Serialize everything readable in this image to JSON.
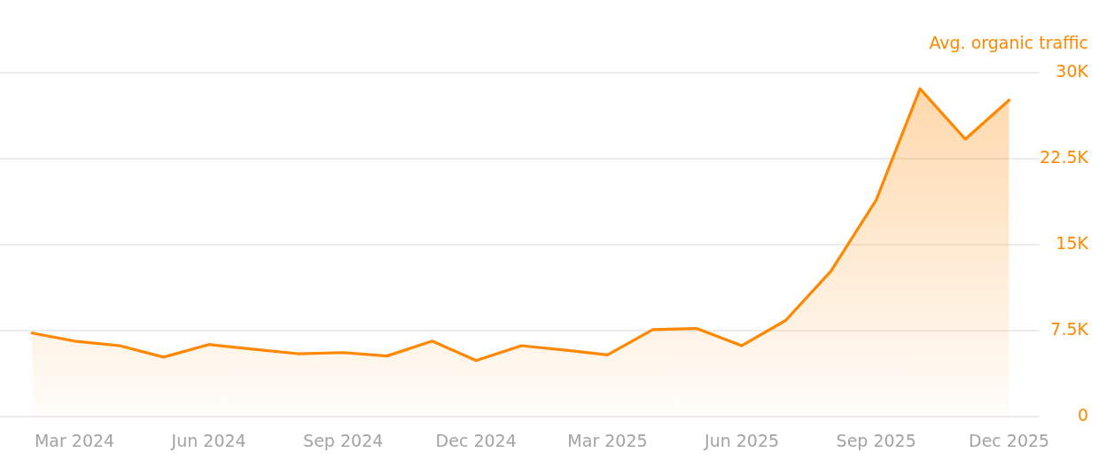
{
  "chart_data": {
    "type": "area",
    "y2label": "Avg. organic traffic",
    "x": [
      "2024-02",
      "2024-03",
      "2024-04",
      "2024-05",
      "2024-06",
      "2024-07",
      "2024-08",
      "2024-09",
      "2024-10",
      "2024-11",
      "2024-12",
      "2025-01",
      "2025-02",
      "2025-03",
      "2025-04",
      "2025-05",
      "2025-06",
      "2025-07",
      "2025-08",
      "2025-09",
      "2025-10",
      "2025-11",
      "2025-12"
    ],
    "series": [
      {
        "color": "#ff8800",
        "axis": "y2",
        "values": [
          7300,
          6600,
          6200,
          5200,
          6300,
          5900,
          5500,
          5600,
          5300,
          6600,
          4900,
          6200,
          5800,
          5400,
          7600,
          7700,
          6200,
          8400,
          12700,
          18900,
          28600,
          24200,
          27600
        ]
      }
    ],
    "xlim": [
      "2024-01-10",
      "2025-12-22"
    ],
    "xticks": [
      {
        "value": "2024-03",
        "label": "Mar 2024"
      },
      {
        "value": "2024-06",
        "label": "Jun 2024"
      },
      {
        "value": "2024-09",
        "label": "Sep 2024"
      },
      {
        "value": "2024-12",
        "label": "Dec 2024"
      },
      {
        "value": "2025-03",
        "label": "Mar 2025"
      },
      {
        "value": "2025-06",
        "label": "Jun 2025"
      },
      {
        "value": "2025-09",
        "label": "Sep 2025"
      },
      {
        "value": "2025-12",
        "label": "Dec 2025"
      }
    ],
    "y2lim": [
      0,
      30000
    ],
    "y2ticks": [
      0,
      {
        "value": 7500,
        "label": "7.5K"
      },
      {
        "value": 15000,
        "label": "15K"
      },
      {
        "value": 22500,
        "label": "22.5K"
      },
      {
        "value": 30000,
        "label": "30K"
      }
    ],
    "grid": "y",
    "legend": false,
    "marker": "none",
    "line_style": "solid"
  }
}
